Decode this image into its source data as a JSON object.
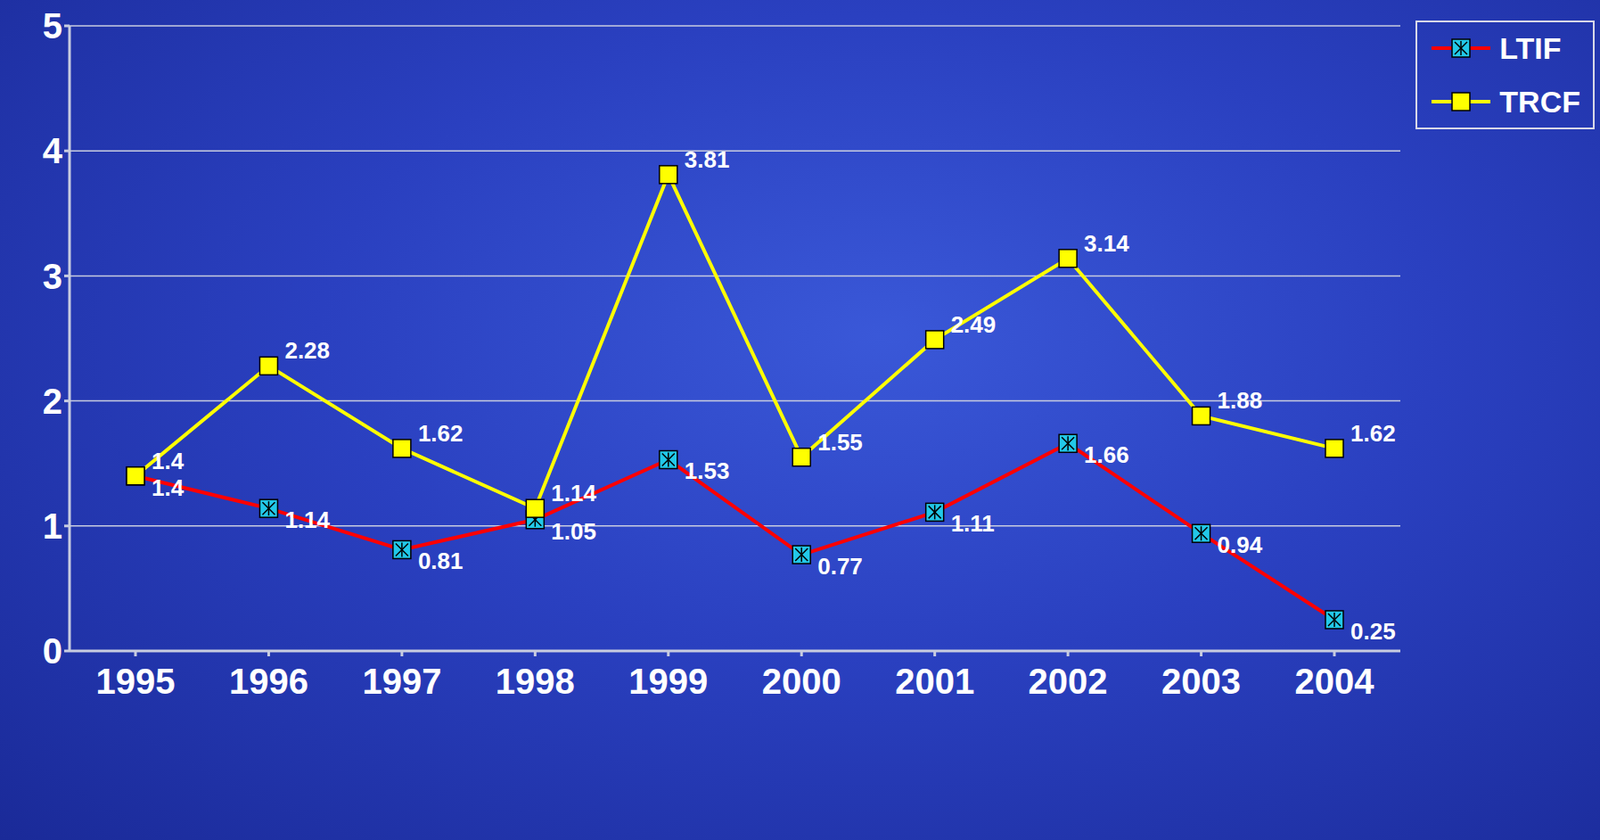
{
  "chart_data": {
    "type": "line",
    "categories": [
      "1995",
      "1996",
      "1997",
      "1998",
      "1999",
      "2000",
      "2001",
      "2002",
      "2003",
      "2004"
    ],
    "series": [
      {
        "name": "LTIF",
        "color": "#ff0000",
        "marker": "x",
        "values": [
          1.4,
          1.14,
          0.81,
          1.05,
          1.53,
          0.77,
          1.11,
          1.66,
          0.94,
          0.25
        ]
      },
      {
        "name": "TRCF",
        "color": "#ffff00",
        "marker": "square",
        "values": [
          1.4,
          2.28,
          1.62,
          1.14,
          3.81,
          1.55,
          2.49,
          3.14,
          1.88,
          1.62
        ]
      }
    ],
    "ylim": [
      0,
      5
    ],
    "yticks": [
      0,
      1,
      2,
      3,
      4,
      5
    ],
    "grid": true,
    "data_labels": true,
    "legend": "top-right"
  }
}
